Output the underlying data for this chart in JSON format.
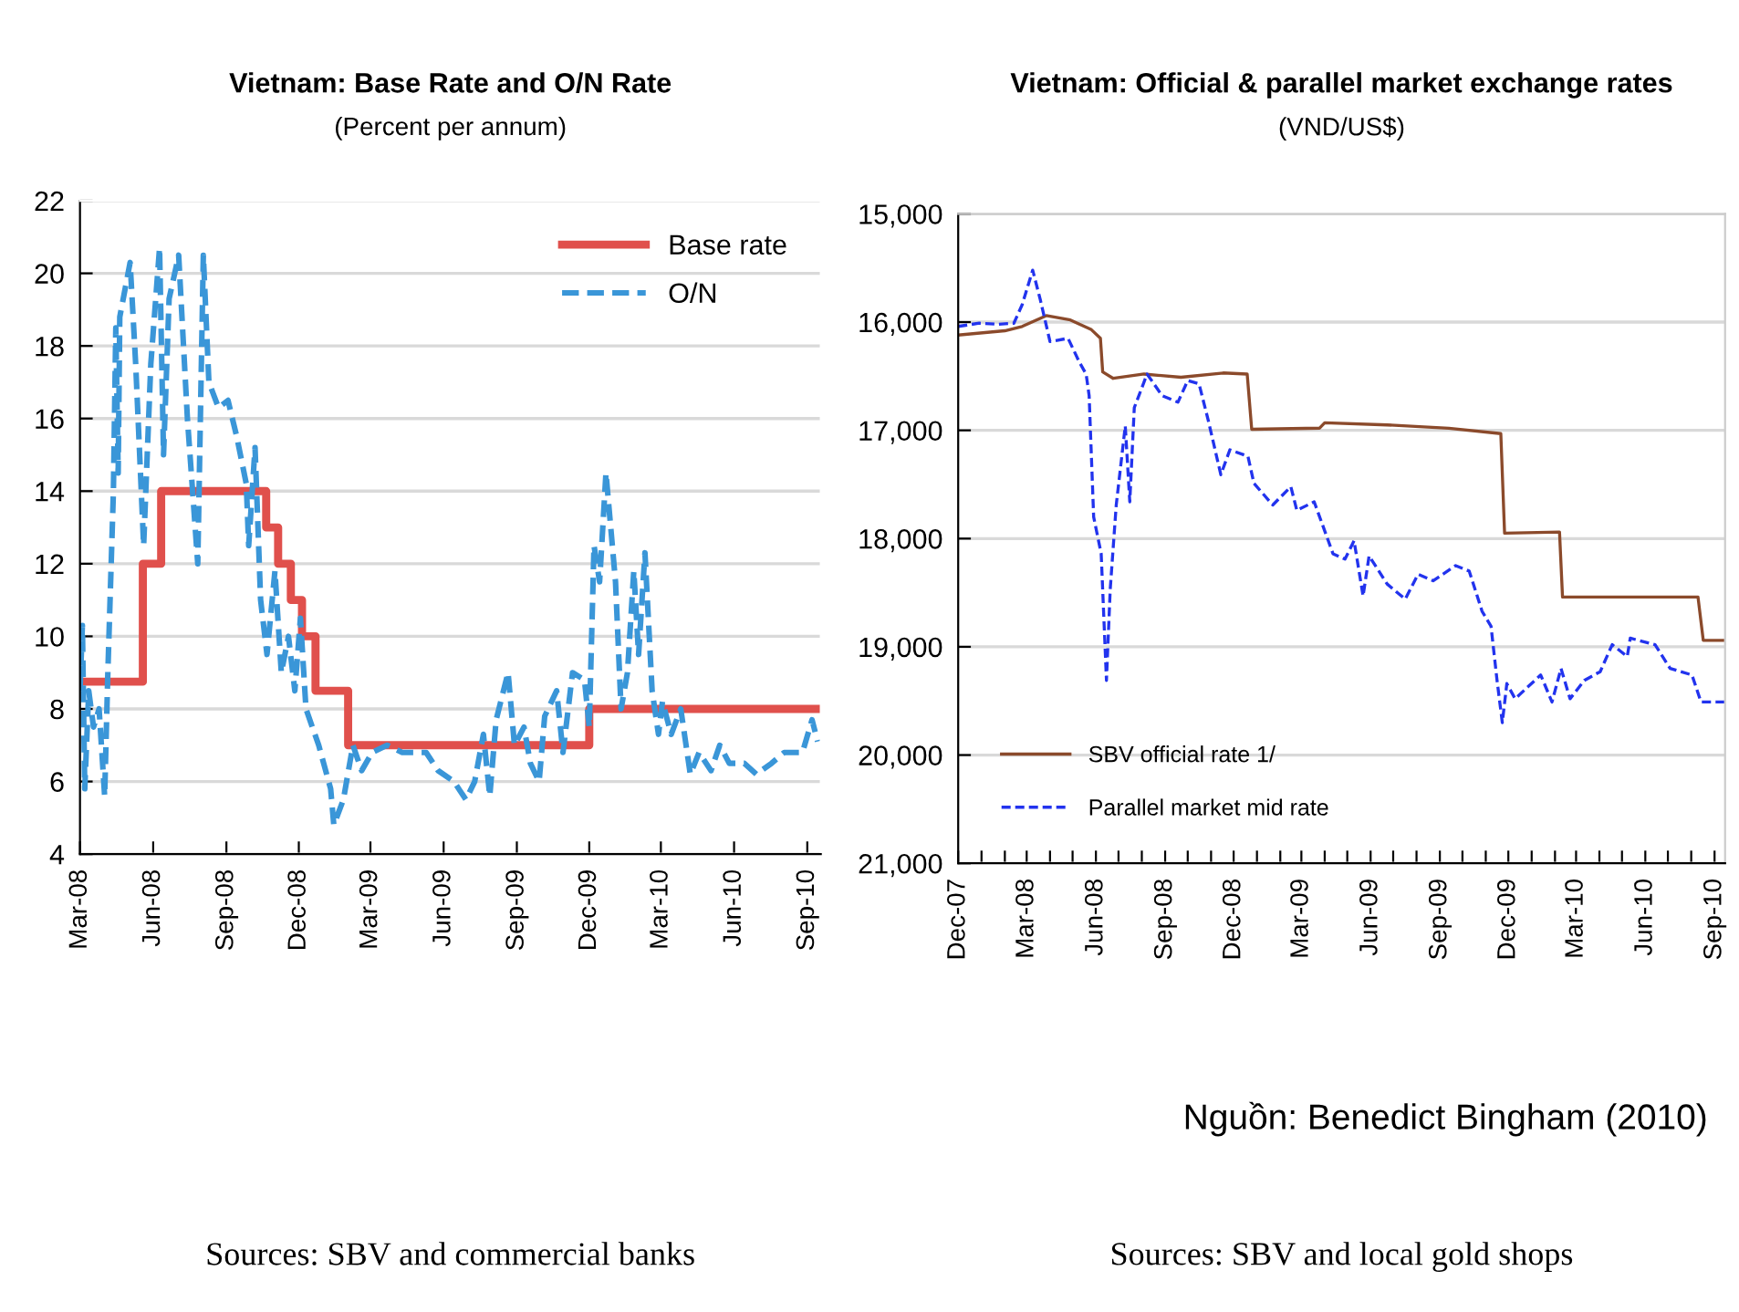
{
  "chart_data": [
    {
      "type": "line",
      "title": "Vietnam: Base Rate and O/N Rate",
      "subtitle": "(Percent per annum)",
      "series": [
        {
          "name": "Base rate",
          "type": "step",
          "color": "#e0504c",
          "line_style": "solid",
          "x": [
            "2008-03-01",
            "2008-05-19",
            "2008-06-11",
            "2008-10-21",
            "2008-11-05",
            "2008-11-21",
            "2008-12-05",
            "2008-12-22",
            "2009-02-01",
            "2009-12-01",
            "2010-09-18"
          ],
          "values": [
            8.75,
            12,
            14,
            13,
            12,
            11,
            10,
            8.5,
            7,
            8,
            8
          ]
        },
        {
          "name": "O/N",
          "color": "#3a96d8",
          "line_style": "dashed",
          "x": [
            "2008-03-01",
            "2008-03-04",
            "2008-03-07",
            "2008-03-12",
            "2008-03-18",
            "2008-03-25",
            "2008-04-01",
            "2008-04-05",
            "2008-04-12",
            "2008-04-15",
            "2008-04-18",
            "2008-04-20",
            "2008-05-03",
            "2008-05-10",
            "2008-05-20",
            "2008-05-29",
            "2008-06-09",
            "2008-06-14",
            "2008-06-21",
            "2008-07-03",
            "2008-07-14",
            "2008-07-27",
            "2008-08-03",
            "2008-08-10",
            "2008-08-22",
            "2008-09-03",
            "2008-09-14",
            "2008-09-26",
            "2008-09-29",
            "2008-10-07",
            "2008-10-14",
            "2008-10-22",
            "2008-11-01",
            "2008-11-09",
            "2008-11-18",
            "2008-11-26",
            "2008-12-03",
            "2008-12-10",
            "2008-12-26",
            "2009-01-10",
            "2009-01-14",
            "2009-01-26",
            "2009-02-07",
            "2009-02-18",
            "2009-03-03",
            "2009-03-22",
            "2009-04-10",
            "2009-05-10",
            "2009-05-25",
            "2009-06-14",
            "2009-06-29",
            "2009-07-10",
            "2009-07-21",
            "2009-07-29",
            "2009-08-06",
            "2009-08-21",
            "2009-08-29",
            "2009-09-10",
            "2009-09-18",
            "2009-09-29",
            "2009-10-06",
            "2009-10-21",
            "2009-10-29",
            "2009-11-10",
            "2009-11-25",
            "2009-12-01",
            "2009-12-07",
            "2009-12-14",
            "2009-12-22",
            "2010-01-03",
            "2010-01-10",
            "2010-01-18",
            "2010-01-26",
            "2010-02-01",
            "2010-02-09",
            "2010-02-18",
            "2010-02-26",
            "2010-03-03",
            "2010-03-14",
            "2010-03-26",
            "2010-04-07",
            "2010-04-18",
            "2010-05-03",
            "2010-05-14",
            "2010-05-26",
            "2010-06-14",
            "2010-06-29",
            "2010-07-18",
            "2010-08-03",
            "2010-08-26",
            "2010-09-07",
            "2010-09-14"
          ],
          "values": [
            8.5,
            10.3,
            5.8,
            8.5,
            7.5,
            8.0,
            5.6,
            9.0,
            14.0,
            18.5,
            14.5,
            18.8,
            20.3,
            17.5,
            12.5,
            17.5,
            20.7,
            15.0,
            19.3,
            20.5,
            16.0,
            12.0,
            20.5,
            17.0,
            16.3,
            16.5,
            15.5,
            14.2,
            12.5,
            15.2,
            11.0,
            9.5,
            11.8,
            9.0,
            10.0,
            8.5,
            10.5,
            8.0,
            7.0,
            5.8,
            4.8,
            5.5,
            7.0,
            6.3,
            6.8,
            7.0,
            6.8,
            6.8,
            6.3,
            6.0,
            5.5,
            6.0,
            7.3,
            5.6,
            7.7,
            9.0,
            7.0,
            7.5,
            6.5,
            6.0,
            7.8,
            8.5,
            6.8,
            9.0,
            8.8,
            7.5,
            12.5,
            11.5,
            14.5,
            11.5,
            8.0,
            9.0,
            11.8,
            9.5,
            12.3,
            8.5,
            7.3,
            8.2,
            7.3,
            8.0,
            6.2,
            6.8,
            6.3,
            7.0,
            6.5,
            6.5,
            6.2,
            6.5,
            6.8,
            6.8,
            7.7,
            7.1
          ]
        }
      ],
      "xlim": [
        "2008-03-01",
        "2010-09-18"
      ],
      "xticks": [
        {
          "value": "2008-03-01",
          "label": "Mar-08"
        },
        {
          "value": "2008-06-01",
          "label": "Jun-08"
        },
        {
          "value": "2008-09-01",
          "label": "Sep-08"
        },
        {
          "value": "2008-12-01",
          "label": "Dec-08"
        },
        {
          "value": "2009-03-01",
          "label": "Mar-09"
        },
        {
          "value": "2009-06-01",
          "label": "Jun-09"
        },
        {
          "value": "2009-09-01",
          "label": "Sep-09"
        },
        {
          "value": "2009-12-01",
          "label": "Dec-09"
        },
        {
          "value": "2010-03-01",
          "label": "Mar-10"
        },
        {
          "value": "2010-06-01",
          "label": "Jun-10"
        },
        {
          "value": "2010-09-01",
          "label": "Sep-10"
        }
      ],
      "ylim": [
        4,
        22
      ],
      "yticks": [
        4,
        6,
        8,
        10,
        12,
        14,
        16,
        18,
        20,
        22
      ],
      "grid": "y",
      "legend": "top right",
      "marker": "none",
      "annotations": [
        "Sources: SBV and commercial banks"
      ]
    },
    {
      "type": "line",
      "title": "Vietnam: Official & parallel market exchange rates",
      "subtitle": "(VND/US$)",
      "series": [
        {
          "name": "SBV official rate 1/",
          "color": "#8b4a2b",
          "line_style": "solid",
          "x": [
            "2007-12-01",
            "2008-02-01",
            "2008-02-24",
            "2008-03-27",
            "2008-04-28",
            "2008-05-26",
            "2008-06-07",
            "2008-06-10",
            "2008-06-24",
            "2008-08-04",
            "2008-09-22",
            "2008-11-17",
            "2008-12-19",
            "2008-12-25",
            "2009-03-25",
            "2009-04-01",
            "2009-06-23",
            "2009-09-13",
            "2009-11-21",
            "2009-11-26",
            "2010-02-07",
            "2010-02-11",
            "2010-08-10",
            "2010-08-17",
            "2010-09-15"
          ],
          "values": [
            16120,
            16080,
            16040,
            15940,
            15980,
            16070,
            16150,
            16460,
            16520,
            16480,
            16510,
            16470,
            16480,
            16990,
            16980,
            16930,
            16950,
            16980,
            17030,
            17950,
            17940,
            18540,
            18540,
            18940,
            18940
          ]
        },
        {
          "name": "Parallel market mid rate",
          "color": "#2233ee",
          "line_style": "dashed",
          "x": [
            "2007-12-01",
            "2007-12-29",
            "2008-01-23",
            "2008-02-13",
            "2008-02-24",
            "2008-03-09",
            "2008-03-19",
            "2008-04-01",
            "2008-04-25",
            "2008-05-10",
            "2008-05-19",
            "2008-05-23",
            "2008-05-29",
            "2008-06-08",
            "2008-06-15",
            "2008-06-20",
            "2008-06-28",
            "2008-07-10",
            "2008-07-16",
            "2008-07-22",
            "2008-08-08",
            "2008-08-28",
            "2008-09-18",
            "2008-10-01",
            "2008-10-16",
            "2008-10-28",
            "2008-11-14",
            "2008-11-26",
            "2008-12-20",
            "2008-12-28",
            "2009-01-22",
            "2009-02-15",
            "2009-02-23",
            "2009-03-18",
            "2009-04-12",
            "2009-04-28",
            "2009-05-10",
            "2009-05-22",
            "2009-05-30",
            "2009-06-23",
            "2009-07-17",
            "2009-08-03",
            "2009-08-23",
            "2009-09-22",
            "2009-10-10",
            "2009-10-27",
            "2009-11-08",
            "2009-11-16",
            "2009-11-23",
            "2009-11-29",
            "2009-12-10",
            "2009-12-27",
            "2010-01-13",
            "2010-01-28",
            "2010-02-09",
            "2010-02-21",
            "2010-03-12",
            "2010-04-02",
            "2010-04-18",
            "2010-05-08",
            "2010-05-12",
            "2010-06-14",
            "2010-07-04",
            "2010-08-02",
            "2010-08-14",
            "2010-09-15"
          ],
          "values": [
            16040,
            16010,
            16020,
            16010,
            15840,
            15520,
            15790,
            16180,
            16150,
            16370,
            16480,
            16680,
            17800,
            18140,
            19310,
            18470,
            17690,
            16960,
            17660,
            16790,
            16480,
            16680,
            16740,
            16540,
            16570,
            16900,
            17410,
            17180,
            17240,
            17490,
            17690,
            17520,
            17740,
            17660,
            18140,
            18190,
            18020,
            18530,
            18160,
            18420,
            18560,
            18330,
            18390,
            18250,
            18300,
            18670,
            18810,
            19310,
            19700,
            19340,
            19480,
            19370,
            19260,
            19510,
            19200,
            19480,
            19310,
            19230,
            18980,
            19090,
            18920,
            18980,
            19200,
            19260,
            19510,
            19510
          ]
        }
      ],
      "xlim": [
        "2007-12-01",
        "2010-09-15"
      ],
      "xticks": [
        {
          "value": "2007-12-01",
          "label": "Dec-07"
        },
        {
          "value": "2008-01-01",
          "label": null
        },
        {
          "value": "2008-02-01",
          "label": null
        },
        {
          "value": "2008-03-01",
          "label": "Mar-08"
        },
        {
          "value": "2008-04-01",
          "label": null
        },
        {
          "value": "2008-05-01",
          "label": null
        },
        {
          "value": "2008-06-01",
          "label": "Jun-08"
        },
        {
          "value": "2008-07-01",
          "label": null
        },
        {
          "value": "2008-08-01",
          "label": null
        },
        {
          "value": "2008-09-01",
          "label": "Sep-08"
        },
        {
          "value": "2008-10-01",
          "label": null
        },
        {
          "value": "2008-11-01",
          "label": null
        },
        {
          "value": "2008-12-01",
          "label": "Dec-08"
        },
        {
          "value": "2009-01-01",
          "label": null
        },
        {
          "value": "2009-02-01",
          "label": null
        },
        {
          "value": "2009-03-01",
          "label": "Mar-09"
        },
        {
          "value": "2009-04-01",
          "label": null
        },
        {
          "value": "2009-05-01",
          "label": null
        },
        {
          "value": "2009-06-01",
          "label": "Jun-09"
        },
        {
          "value": "2009-07-01",
          "label": null
        },
        {
          "value": "2009-08-01",
          "label": null
        },
        {
          "value": "2009-09-01",
          "label": "Sep-09"
        },
        {
          "value": "2009-10-01",
          "label": null
        },
        {
          "value": "2009-11-01",
          "label": null
        },
        {
          "value": "2009-12-01",
          "label": "Dec-09"
        },
        {
          "value": "2010-01-01",
          "label": null
        },
        {
          "value": "2010-02-01",
          "label": null
        },
        {
          "value": "2010-03-01",
          "label": "Mar-10"
        },
        {
          "value": "2010-04-01",
          "label": null
        },
        {
          "value": "2010-05-01",
          "label": null
        },
        {
          "value": "2010-06-01",
          "label": "Jun-10"
        },
        {
          "value": "2010-07-01",
          "label": null
        },
        {
          "value": "2010-08-01",
          "label": null
        },
        {
          "value": "2010-09-01",
          "label": "Sep-10"
        }
      ],
      "ylim": [
        21000,
        15000
      ],
      "yticks": [
        {
          "value": 15000,
          "label": "15,000"
        },
        {
          "value": 16000,
          "label": "16,000"
        },
        {
          "value": 17000,
          "label": "17,000"
        },
        {
          "value": 18000,
          "label": "18,000"
        },
        {
          "value": 19000,
          "label": "19,000"
        },
        {
          "value": 20000,
          "label": "20,000"
        },
        {
          "value": 21000,
          "label": "21,000"
        }
      ],
      "grid": "y",
      "legend": "bottom left",
      "marker": "none",
      "annotations": [
        "Nguồn: Benedict Bingham (2010)",
        "Sources: SBV and local gold shops"
      ]
    }
  ]
}
